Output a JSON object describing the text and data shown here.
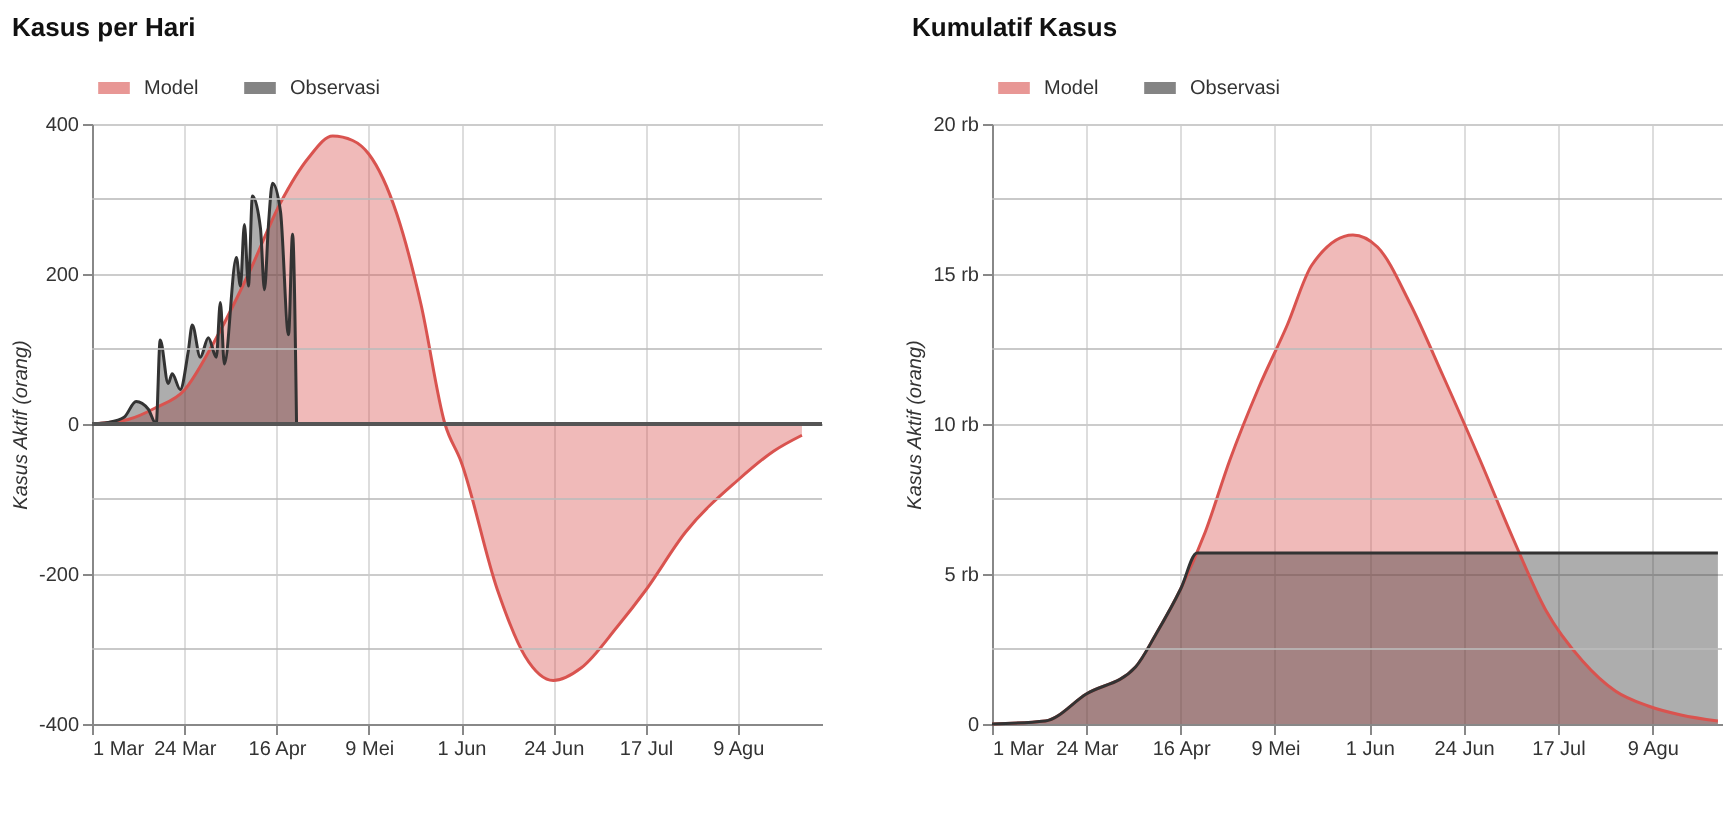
{
  "chart_data": [
    {
      "type": "area",
      "title": "Kasus per Hari",
      "ylabel": "Kasus Aktif (orang)",
      "grid": true,
      "legend": "top left",
      "marker": "none",
      "line_style": "solid",
      "xlim": [
        "--03-01",
        "--08-30"
      ],
      "xticks": [
        {
          "value": "--03-01",
          "label": "1 Mar"
        },
        {
          "value": "--03-24",
          "label": "24 Mar"
        },
        {
          "value": "--04-16",
          "label": "16 Apr"
        },
        {
          "value": "--05-09",
          "label": "9 Mei"
        },
        {
          "value": "--06-01",
          "label": "1 Jun"
        },
        {
          "value": "--06-24",
          "label": "24 Jun"
        },
        {
          "value": "--07-17",
          "label": "17 Jul"
        },
        {
          "value": "--08-09",
          "label": "9 Agu"
        }
      ],
      "ylim": [
        -400,
        400
      ],
      "yticks": [
        -400,
        {
          "value": -300,
          "label": null
        },
        -200,
        {
          "value": -100,
          "label": null
        },
        0,
        {
          "value": 100,
          "label": null
        },
        200,
        {
          "value": 300,
          "label": null
        },
        400
      ],
      "ref_lines": [
        {
          "axis": "y",
          "value": 0,
          "color": "#555555"
        }
      ],
      "series": [
        {
          "name": "Model",
          "color": "#d9534f",
          "x": [
            "--03-01",
            "--03-10",
            "--03-17",
            "--03-24",
            "--03-31",
            "--04-09",
            "--04-17",
            "--04-24",
            "--04-30",
            "--05-05",
            "--05-09",
            "--05-16",
            "--05-22",
            "--05-28",
            "--06-01",
            "--06-10",
            "--06-17",
            "--06-24",
            "--07-01",
            "--07-10",
            "--07-17",
            "--07-27",
            "--08-09",
            "--08-18",
            "--08-25"
          ],
          "values": [
            0,
            6,
            22,
            45,
            105,
            200,
            295,
            355,
            384,
            378,
            360,
            280,
            160,
            0,
            -50,
            -220,
            -310,
            -342,
            -325,
            -270,
            -222,
            -144,
            -75,
            -36,
            -15
          ]
        },
        {
          "name": "Observasi",
          "color": "#333333",
          "x": [
            "--03-01",
            "--03-05",
            "--03-09",
            "--03-12",
            "--03-15",
            "--03-17",
            "--03-18",
            "--03-20",
            "--03-21",
            "--03-23",
            "--03-25",
            "--03-26",
            "--03-28",
            "--03-30",
            "--04-01",
            "--04-02",
            "--04-03",
            "--04-06",
            "--04-07",
            "--04-08",
            "--04-09",
            "--04-10",
            "--04-12",
            "--04-13",
            "--04-14",
            "--04-15",
            "--04-17",
            "--04-19",
            "--04-20",
            "--04-21"
          ],
          "values": [
            0,
            2,
            9,
            30,
            20,
            0,
            112,
            54,
            67,
            46,
            97,
            132,
            89,
            115,
            89,
            162,
            80,
            222,
            184,
            266,
            184,
            304,
            261,
            179,
            266,
            321,
            283,
            119,
            253,
            0
          ]
        }
      ]
    },
    {
      "type": "area",
      "title": "Kumulatif Kasus",
      "ylabel": "Kasus Aktif (orang)",
      "grid": true,
      "legend": "top left",
      "marker": "none",
      "line_style": "solid",
      "xlim": [
        "--03-01",
        "--08-26"
      ],
      "xticks": [
        {
          "value": "--03-01",
          "label": "1 Mar"
        },
        {
          "value": "--03-24",
          "label": "24 Mar"
        },
        {
          "value": "--04-16",
          "label": "16 Apr"
        },
        {
          "value": "--05-09",
          "label": "9 Mei"
        },
        {
          "value": "--06-01",
          "label": "1 Jun"
        },
        {
          "value": "--06-24",
          "label": "24 Jun"
        },
        {
          "value": "--07-17",
          "label": "17 Jul"
        },
        {
          "value": "--08-09",
          "label": "9 Agu"
        }
      ],
      "ylim": [
        0,
        20
      ],
      "yticks": [
        0,
        {
          "value": 2.5,
          "label": null
        },
        {
          "value": 5,
          "label": "5 rb"
        },
        {
          "value": 7.5,
          "label": null
        },
        {
          "value": 10,
          "label": "10 rb"
        },
        {
          "value": 12.5,
          "label": null
        },
        {
          "value": 15,
          "label": "15 rb"
        },
        {
          "value": 17.5,
          "label": null
        },
        {
          "value": 20,
          "label": "20 rb"
        }
      ],
      "series": [
        {
          "name": "Model",
          "color": "#d9534f",
          "x": [
            "--03-01",
            "--03-14",
            "--03-24",
            "--04-05",
            "--04-10",
            "--04-16",
            "--04-22",
            "--04-28",
            "--05-05",
            "--05-12",
            "--05-18",
            "--05-28",
            "--06-03",
            "--06-11",
            "--06-19",
            "--06-28",
            "--07-06",
            "--07-14",
            "--07-23",
            "--07-31",
            "--08-08",
            "--08-16",
            "--08-25"
          ],
          "values": [
            0,
            0.1,
            1.0,
            1.9,
            3.0,
            4.5,
            6.4,
            8.8,
            11.2,
            13.3,
            15.3,
            16.3,
            15.9,
            14.0,
            11.6,
            8.8,
            6.2,
            3.8,
            2.1,
            1.1,
            0.6,
            0.3,
            0.1
          ]
        },
        {
          "name": "Observasi",
          "color": "#333333",
          "x": [
            "--03-01",
            "--03-14",
            "--03-24",
            "--04-05",
            "--04-10",
            "--04-16",
            "--04-20",
            "--08-25"
          ],
          "values": [
            0,
            0.1,
            1.0,
            1.9,
            3.0,
            4.5,
            5.7,
            5.7
          ]
        }
      ]
    }
  ]
}
